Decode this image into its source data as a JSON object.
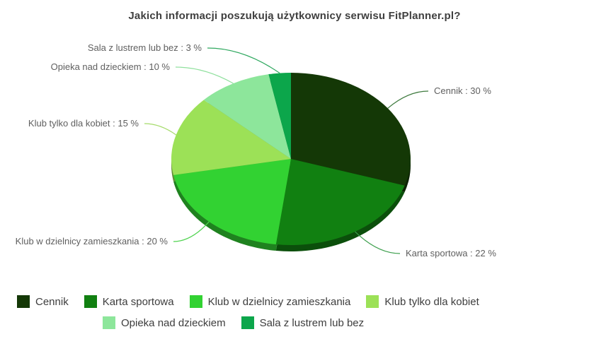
{
  "chart_data": {
    "type": "pie",
    "title": "Jakich informacji poszukują użytkownicy serwisu FitPlanner.pl?",
    "unit": "%",
    "label_format": "{label} : {value} %",
    "legend_position": "bottom",
    "start_angle_deg_clockwise_from_top": 0,
    "slices": [
      {
        "label": "Cennik",
        "value": 30,
        "color": "#143806",
        "line_color": "#3e7a3e"
      },
      {
        "label": "Karta sportowa",
        "value": 22,
        "color": "#118011",
        "line_color": "#3fa04f"
      },
      {
        "label": "Klub w dzielnicy zamieszkania",
        "value": 20,
        "color": "#32d232",
        "line_color": "#4fd34f"
      },
      {
        "label": "Klub tylko dla kobiet",
        "value": 15,
        "color": "#9ce157",
        "line_color": "#a5db6a"
      },
      {
        "label": "Opieka nad dzieckiem",
        "value": 10,
        "color": "#8de69b",
        "line_color": "#8fe09d"
      },
      {
        "label": "Sala z lustrem lub bez",
        "value": 3,
        "color": "#0ca64b",
        "line_color": "#2fa85f"
      }
    ],
    "colors": {
      "background": "#ffffff",
      "title_text": "#3f3f3f",
      "callout_text": "#5f5f5f",
      "legend_text": "#3d3d3d"
    }
  }
}
